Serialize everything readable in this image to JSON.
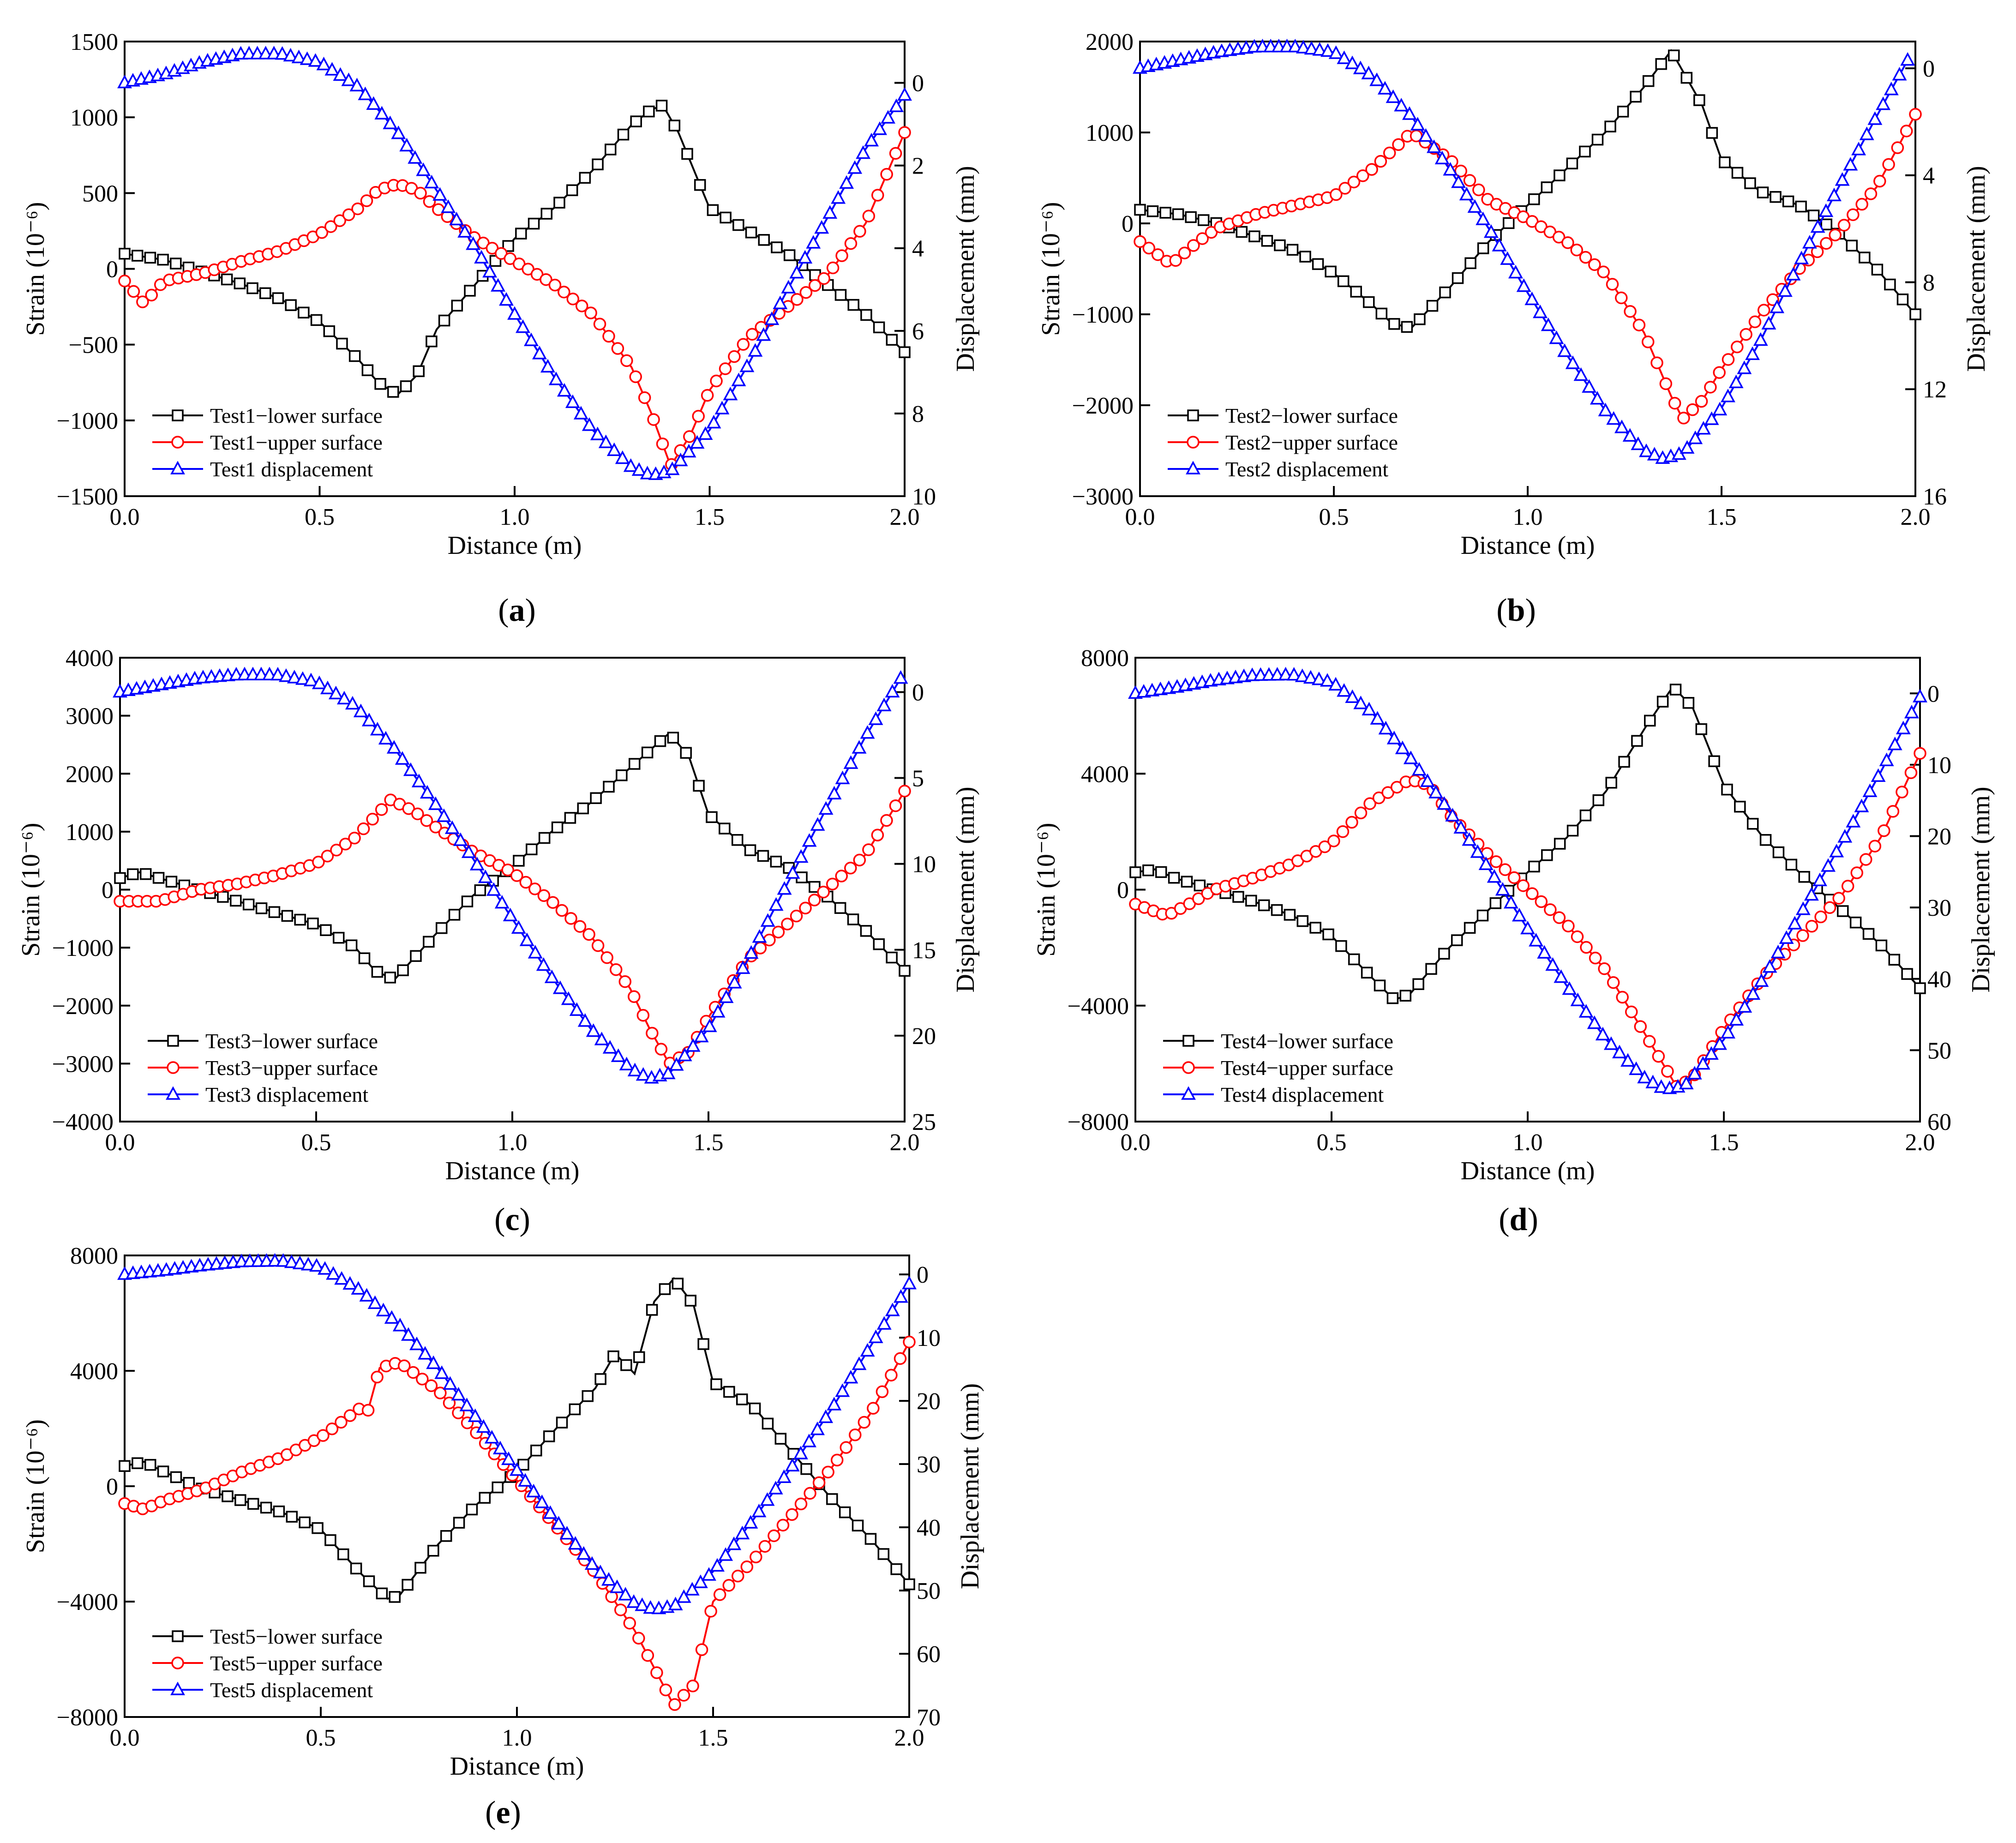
{
  "figure": {
    "panel_labels": [
      "a",
      "b",
      "c",
      "d",
      "e"
    ]
  },
  "colors": {
    "lower": "#000000",
    "upper": "#ff0000",
    "displacement": "#0000ff"
  },
  "chart_data": [
    {
      "type": "line",
      "panel": "a",
      "xlabel": "Distance (m)",
      "ylabel": "Strain (10⁻⁶)",
      "y2label": "Displacement (mm)",
      "xlim": [
        0,
        2.0
      ],
      "ylim": [
        -1500,
        1500
      ],
      "y2lim": [
        -1,
        10
      ],
      "y2_inverted": true,
      "xticks": [
        0.0,
        0.5,
        1.0,
        1.5,
        2.0
      ],
      "yticks": [
        -1500,
        -1000,
        -500,
        0,
        500,
        1000,
        1500
      ],
      "y2ticks": [
        0,
        2,
        4,
        6,
        8,
        10
      ],
      "legend": [
        "Test1−lower surface",
        "Test1−upper surface",
        "Test1 displacement"
      ],
      "series": [
        {
          "name": "Test1−lower surface",
          "axis": "left",
          "marker": "square",
          "x": [
            0,
            0.1,
            0.2,
            0.3,
            0.4,
            0.5,
            0.6,
            0.65,
            0.7,
            0.75,
            0.8,
            0.85,
            0.9,
            1.0,
            1.1,
            1.2,
            1.3,
            1.35,
            1.38,
            1.42,
            1.5,
            1.6,
            1.7,
            1.8,
            1.9,
            2.0
          ],
          "values": [
            100,
            60,
            -20,
            -100,
            -200,
            -350,
            -600,
            -750,
            -830,
            -700,
            -400,
            -250,
            -100,
            200,
            400,
            650,
            950,
            1050,
            1080,
            900,
            400,
            250,
            100,
            -100,
            -300,
            -550
          ]
        },
        {
          "name": "Test1−upper surface",
          "axis": "left",
          "marker": "circle",
          "x": [
            0,
            0.05,
            0.1,
            0.2,
            0.3,
            0.4,
            0.5,
            0.6,
            0.65,
            0.7,
            0.75,
            0.8,
            0.9,
            1.0,
            1.1,
            1.2,
            1.3,
            1.35,
            1.4,
            1.45,
            1.5,
            1.6,
            1.7,
            1.8,
            1.9,
            2.0
          ],
          "values": [
            -80,
            -230,
            -80,
            -30,
            50,
            120,
            230,
            400,
            520,
            560,
            520,
            400,
            200,
            50,
            -100,
            -300,
            -650,
            -950,
            -1300,
            -1100,
            -800,
            -450,
            -250,
            -50,
            300,
            900
          ]
        },
        {
          "name": "Test1 displacement",
          "axis": "right",
          "marker": "triangle",
          "x": [
            0,
            0.1,
            0.2,
            0.3,
            0.4,
            0.5,
            0.6,
            0.7,
            0.8,
            0.9,
            1.0,
            1.1,
            1.2,
            1.3,
            1.35,
            1.4,
            1.5,
            1.6,
            1.7,
            1.8,
            1.9,
            2.0
          ],
          "values": [
            0,
            -0.2,
            -0.5,
            -0.7,
            -0.7,
            -0.5,
            0.1,
            1.2,
            2.6,
            4.0,
            5.6,
            7.1,
            8.4,
            9.3,
            9.5,
            9.4,
            8.4,
            6.8,
            5.0,
            3.3,
            1.6,
            0.3
          ]
        }
      ]
    },
    {
      "type": "line",
      "panel": "b",
      "xlabel": "Distance (m)",
      "ylabel": "Strain (10⁻⁶)",
      "y2label": "Displacement (mm)",
      "xlim": [
        0,
        2.0
      ],
      "ylim": [
        -3000,
        2000
      ],
      "y2lim": [
        -1,
        16
      ],
      "y2_inverted": true,
      "xticks": [
        0.0,
        0.5,
        1.0,
        1.5,
        2.0
      ],
      "yticks": [
        -3000,
        -2000,
        -1000,
        0,
        1000,
        2000
      ],
      "y2ticks": [
        0,
        4,
        8,
        12,
        16
      ],
      "legend": [
        "Test2−lower surface",
        "Test2−upper surface",
        "Test2 displacement"
      ],
      "series": [
        {
          "name": "Test2−lower surface",
          "axis": "left",
          "marker": "square",
          "x": [
            0,
            0.1,
            0.2,
            0.3,
            0.4,
            0.5,
            0.6,
            0.65,
            0.7,
            0.8,
            0.9,
            1.0,
            1.1,
            1.2,
            1.3,
            1.37,
            1.45,
            1.5,
            1.6,
            1.7,
            1.8,
            1.9,
            2.0
          ],
          "values": [
            150,
            100,
            0,
            -150,
            -300,
            -550,
            -900,
            -1100,
            -1150,
            -700,
            -200,
            200,
            600,
            1000,
            1500,
            1900,
            1300,
            700,
            350,
            200,
            -100,
            -500,
            -1000
          ]
        },
        {
          "name": "Test2−upper surface",
          "axis": "left",
          "marker": "circle",
          "x": [
            0,
            0.08,
            0.15,
            0.2,
            0.3,
            0.4,
            0.5,
            0.6,
            0.7,
            0.8,
            0.9,
            1.0,
            1.1,
            1.2,
            1.3,
            1.37,
            1.4,
            1.45,
            1.5,
            1.6,
            1.7,
            1.8,
            1.9,
            2.0
          ],
          "values": [
            -200,
            -450,
            -200,
            -50,
            100,
            200,
            300,
            600,
            1000,
            700,
            250,
            50,
            -200,
            -550,
            -1200,
            -1900,
            -2150,
            -1950,
            -1600,
            -1000,
            -500,
            -100,
            400,
            1200
          ]
        },
        {
          "name": "Test2 displacement",
          "axis": "right",
          "marker": "triangle",
          "x": [
            0,
            0.1,
            0.2,
            0.3,
            0.4,
            0.5,
            0.6,
            0.7,
            0.8,
            0.9,
            1.0,
            1.1,
            1.2,
            1.3,
            1.35,
            1.4,
            1.5,
            1.6,
            1.7,
            1.8,
            1.9,
            1.98
          ],
          "values": [
            0,
            -0.3,
            -0.6,
            -0.8,
            -0.8,
            -0.6,
            0.3,
            1.8,
            3.8,
            6.0,
            8.4,
            10.7,
            12.8,
            14.3,
            14.6,
            14.4,
            12.7,
            10.2,
            7.3,
            4.5,
            1.8,
            -0.3
          ]
        }
      ]
    },
    {
      "type": "line",
      "panel": "c",
      "xlabel": "Distance (m)",
      "ylabel": "Strain (10⁻⁶)",
      "y2label": "Displacement (mm)",
      "xlim": [
        0,
        2.0
      ],
      "ylim": [
        -4000,
        4000
      ],
      "y2lim": [
        -2,
        25
      ],
      "y2_inverted": true,
      "xticks": [
        0.0,
        0.5,
        1.0,
        1.5,
        2.0
      ],
      "yticks": [
        -4000,
        -3000,
        -2000,
        -1000,
        0,
        1000,
        2000,
        3000,
        4000
      ],
      "y2ticks": [
        0,
        5,
        10,
        15,
        20,
        25
      ],
      "legend": [
        "Test3−lower surface",
        "Test3−upper surface",
        "Test3 displacement"
      ],
      "series": [
        {
          "name": "Test3−lower surface",
          "axis": "left",
          "marker": "square",
          "x": [
            0,
            0.05,
            0.1,
            0.2,
            0.3,
            0.4,
            0.5,
            0.6,
            0.65,
            0.7,
            0.8,
            0.9,
            1.0,
            1.1,
            1.2,
            1.3,
            1.35,
            1.4,
            1.45,
            1.5,
            1.6,
            1.7,
            1.8,
            1.9,
            2.0
          ],
          "values": [
            200,
            300,
            200,
            0,
            -200,
            -400,
            -600,
            -1000,
            -1400,
            -1550,
            -800,
            -100,
            400,
            1000,
            1500,
            2100,
            2400,
            2700,
            2300,
            1300,
            700,
            400,
            -100,
            -700,
            -1400
          ]
        },
        {
          "name": "Test3−upper surface",
          "axis": "left",
          "marker": "circle",
          "x": [
            0,
            0.1,
            0.2,
            0.3,
            0.4,
            0.5,
            0.6,
            0.69,
            0.75,
            0.8,
            0.9,
            1.0,
            1.1,
            1.2,
            1.3,
            1.35,
            1.4,
            1.45,
            1.5,
            1.6,
            1.7,
            1.8,
            1.9,
            2.0
          ],
          "values": [
            -200,
            -200,
            0,
            100,
            250,
            450,
            900,
            1550,
            1350,
            1100,
            650,
            300,
            -200,
            -800,
            -1700,
            -2400,
            -3000,
            -2800,
            -2200,
            -1200,
            -600,
            0,
            600,
            1700
          ]
        },
        {
          "name": "Test3 displacement",
          "axis": "right",
          "marker": "triangle",
          "x": [
            0,
            0.1,
            0.2,
            0.3,
            0.4,
            0.5,
            0.6,
            0.7,
            0.8,
            0.9,
            1.0,
            1.1,
            1.2,
            1.3,
            1.35,
            1.4,
            1.5,
            1.6,
            1.7,
            1.8,
            1.9,
            1.99
          ],
          "values": [
            0,
            -0.4,
            -0.8,
            -1.0,
            -1.0,
            -0.6,
            0.8,
            3.3,
            6.4,
            9.7,
            13.2,
            16.6,
            19.6,
            21.9,
            22.5,
            22.2,
            19.6,
            15.6,
            11.2,
            6.8,
            2.6,
            -0.8
          ]
        }
      ]
    },
    {
      "type": "line",
      "panel": "d",
      "xlabel": "Distance (m)",
      "ylabel": "Strain (10⁻⁶)",
      "y2label": "Displacement (mm)",
      "xlim": [
        0,
        2.0
      ],
      "ylim": [
        -8000,
        8000
      ],
      "y2lim": [
        -5,
        60
      ],
      "y2_inverted": true,
      "xticks": [
        0.0,
        0.5,
        1.0,
        1.5,
        2.0
      ],
      "yticks": [
        -8000,
        -4000,
        0,
        4000,
        8000
      ],
      "y2ticks": [
        0,
        10,
        20,
        30,
        40,
        50,
        60
      ],
      "legend": [
        "Test4−lower surface",
        "Test4−upper surface",
        "Test4 displacement"
      ],
      "series": [
        {
          "name": "Test4−lower surface",
          "axis": "left",
          "marker": "square",
          "x": [
            0,
            0.05,
            0.1,
            0.2,
            0.3,
            0.4,
            0.5,
            0.6,
            0.66,
            0.7,
            0.8,
            0.9,
            1.0,
            1.1,
            1.2,
            1.3,
            1.37,
            1.42,
            1.5,
            1.6,
            1.7,
            1.8,
            1.9,
            2.0
          ],
          "values": [
            600,
            700,
            400,
            0,
            -400,
            -900,
            -1600,
            -3000,
            -3800,
            -3600,
            -2000,
            -700,
            600,
            1800,
            3400,
            5600,
            7000,
            6300,
            3600,
            1800,
            500,
            -700,
            -1900,
            -3400
          ]
        },
        {
          "name": "Test4−upper surface",
          "axis": "left",
          "marker": "circle",
          "x": [
            0,
            0.08,
            0.15,
            0.2,
            0.3,
            0.4,
            0.5,
            0.6,
            0.7,
            0.75,
            0.8,
            0.9,
            1.0,
            1.1,
            1.2,
            1.3,
            1.38,
            1.42,
            1.5,
            1.6,
            1.7,
            1.8,
            1.9,
            2.0
          ],
          "values": [
            -500,
            -900,
            -400,
            0,
            400,
            900,
            1600,
            3000,
            3800,
            3600,
            2600,
            1200,
            0,
            -1200,
            -2800,
            -5000,
            -6800,
            -6500,
            -4800,
            -3000,
            -1600,
            -200,
            1800,
            4700
          ]
        },
        {
          "name": "Test4 displacement",
          "axis": "right",
          "marker": "triangle",
          "x": [
            0,
            0.1,
            0.2,
            0.3,
            0.4,
            0.5,
            0.6,
            0.7,
            0.8,
            0.9,
            1.0,
            1.1,
            1.2,
            1.3,
            1.35,
            1.4,
            1.5,
            1.6,
            1.7,
            1.8,
            1.9,
            2.0
          ],
          "values": [
            0,
            -0.8,
            -1.8,
            -2.5,
            -2.6,
            -1.6,
            2.5,
            9.0,
            16.5,
            24.5,
            33.0,
            41.0,
            48.5,
            54.0,
            55.5,
            55.0,
            48.5,
            40.0,
            30.5,
            21.0,
            11.0,
            0.5
          ]
        }
      ]
    },
    {
      "type": "line",
      "panel": "e",
      "xlabel": "Distance (m)",
      "ylabel": "Strain (10⁻⁶)",
      "y2label": "Displacement (mm)",
      "xlim": [
        0,
        2.0
      ],
      "ylim": [
        -8000,
        8000
      ],
      "y2lim": [
        -3,
        70
      ],
      "y2_inverted": true,
      "xticks": [
        0.0,
        0.5,
        1.0,
        1.5,
        2.0
      ],
      "yticks": [
        -8000,
        -4000,
        0,
        4000,
        8000
      ],
      "y2ticks": [
        0,
        10,
        20,
        30,
        40,
        50,
        60,
        70
      ],
      "legend": [
        "Test5−lower surface",
        "Test5−upper surface",
        "Test5 displacement"
      ],
      "series": [
        {
          "name": "Test5−lower surface",
          "axis": "left",
          "marker": "square",
          "x": [
            0,
            0.05,
            0.1,
            0.2,
            0.3,
            0.4,
            0.5,
            0.6,
            0.67,
            0.7,
            0.8,
            0.9,
            1.0,
            1.1,
            1.2,
            1.25,
            1.3,
            1.35,
            1.4,
            1.45,
            1.5,
            1.6,
            1.7,
            1.8,
            1.9,
            2.0
          ],
          "values": [
            700,
            850,
            500,
            -100,
            -500,
            -900,
            -1500,
            -3000,
            -3900,
            -3800,
            -2000,
            -600,
            500,
            2000,
            3400,
            4600,
            3900,
            6400,
            7200,
            6300,
            3600,
            2800,
            1200,
            -400,
            -1800,
            -3400
          ]
        },
        {
          "name": "Test5−upper surface",
          "axis": "left",
          "marker": "circle",
          "x": [
            0,
            0.05,
            0.1,
            0.2,
            0.3,
            0.4,
            0.5,
            0.6,
            0.62,
            0.65,
            0.7,
            0.8,
            0.9,
            1.0,
            1.1,
            1.2,
            1.3,
            1.35,
            1.4,
            1.45,
            1.5,
            1.6,
            1.7,
            1.8,
            1.9,
            2.0
          ],
          "values": [
            -600,
            -800,
            -500,
            -100,
            500,
            1000,
            1700,
            2700,
            2600,
            4100,
            4300,
            3300,
            1800,
            200,
            -1400,
            -3000,
            -5000,
            -6300,
            -7600,
            -6900,
            -4000,
            -2600,
            -1000,
            600,
            2500,
            5000
          ]
        },
        {
          "name": "Test5 displacement",
          "axis": "right",
          "marker": "triangle",
          "x": [
            0,
            0.1,
            0.2,
            0.3,
            0.4,
            0.5,
            0.6,
            0.7,
            0.8,
            0.9,
            1.0,
            1.1,
            1.2,
            1.3,
            1.35,
            1.4,
            1.5,
            1.6,
            1.7,
            1.8,
            1.9,
            2.0
          ],
          "values": [
            0,
            -0.6,
            -1.4,
            -2.0,
            -2.1,
            -1.2,
            2.5,
            8.0,
            15.0,
            23.0,
            31.0,
            39.0,
            46.5,
            52.0,
            53.0,
            52.5,
            47.0,
            39.0,
            30.5,
            21.5,
            11.5,
            1.5
          ]
        }
      ]
    }
  ]
}
